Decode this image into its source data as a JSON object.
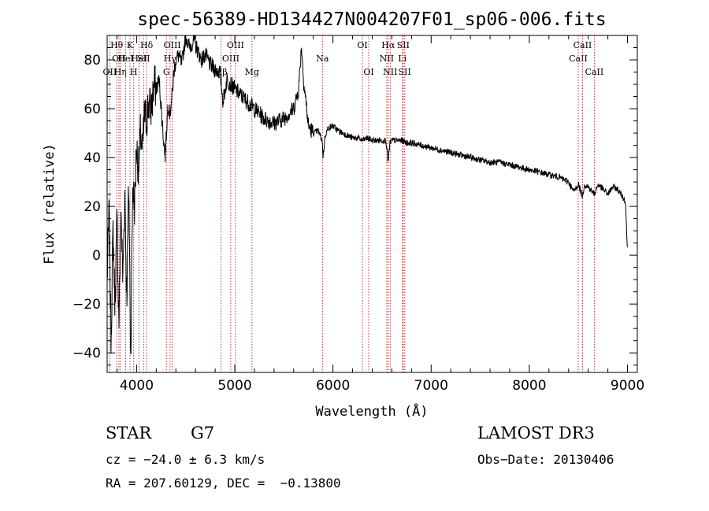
{
  "chart_data": {
    "type": "line",
    "title": "spec-56389-HD134427N004207F01_sp06-006.fits",
    "xlabel": "Wavelength (Å)",
    "ylabel": "Flux (relative)",
    "xlim": [
      3700,
      9100
    ],
    "ylim": [
      -48,
      90
    ],
    "x_ticks": [
      4000,
      5000,
      6000,
      7000,
      8000,
      9000
    ],
    "y_ticks": [
      -40,
      -20,
      0,
      20,
      40,
      60,
      80
    ],
    "grid": false,
    "series": [
      {
        "x": [
          3700,
          3720,
          3740,
          3760,
          3780,
          3800,
          3820,
          3840,
          3860,
          3880,
          3900,
          3920,
          3940,
          3960,
          3980,
          4000,
          4020,
          4040,
          4060,
          4080,
          4100,
          4120,
          4150,
          4180,
          4200,
          4230,
          4260,
          4290,
          4320,
          4340,
          4360,
          4380,
          4400,
          4430,
          4460,
          4500,
          4540,
          4580,
          4620,
          4660,
          4700,
          4750,
          4800,
          4850,
          4880,
          4920,
          4960,
          5000,
          5050,
          5100,
          5150,
          5200,
          5250,
          5300,
          5350,
          5400,
          5450,
          5500,
          5550,
          5600,
          5650,
          5680,
          5700,
          5720,
          5750,
          5800,
          5850,
          5890,
          5900,
          5920,
          5950,
          6000,
          6050,
          6100,
          6150,
          6200,
          6250,
          6300,
          6350,
          6400,
          6450,
          6500,
          6540,
          6563,
          6580,
          6600,
          6650,
          6700,
          6750,
          6800,
          6900,
          7000,
          7100,
          7200,
          7300,
          7400,
          7500,
          7600,
          7700,
          7800,
          7900,
          8000,
          8100,
          8200,
          8300,
          8400,
          8450,
          8500,
          8542,
          8560,
          8600,
          8662,
          8700,
          8750,
          8800,
          8850,
          8900,
          8950,
          8980,
          9000
        ],
        "y": [
          -10,
          18,
          -35,
          10,
          -20,
          15,
          -28,
          20,
          -10,
          25,
          -18,
          30,
          -42,
          28,
          20,
          45,
          35,
          50,
          42,
          58,
          55,
          62,
          60,
          70,
          68,
          72,
          55,
          40,
          62,
          58,
          65,
          75,
          80,
          82,
          78,
          90,
          85,
          88,
          84,
          80,
          82,
          78,
          76,
          75,
          63,
          72,
          70,
          68,
          66,
          64,
          62,
          60,
          58,
          56,
          55,
          54,
          55,
          56,
          58,
          60,
          68,
          86,
          72,
          65,
          53,
          50,
          51,
          47,
          40,
          49,
          52,
          53,
          51,
          50,
          49,
          48,
          48,
          47,
          48,
          47,
          47,
          47,
          47,
          38,
          46,
          47,
          47,
          47,
          46,
          46,
          45,
          44,
          43,
          42,
          41,
          40,
          39,
          38,
          38,
          37,
          36,
          35,
          34,
          33,
          32,
          30,
          26,
          29,
          24,
          29,
          28,
          25,
          29,
          27,
          25,
          28,
          27,
          24,
          22,
          0
        ]
      }
    ],
    "spectral_lines": [
      {
        "wavelength": 3727,
        "labels": [
          "OII"
        ],
        "row": 3
      },
      {
        "wavelength": 3798,
        "labels": [
          "Hθ"
        ],
        "row": 1
      },
      {
        "wavelength": 3820,
        "labels": [
          "OII"
        ],
        "row": 2
      },
      {
        "wavelength": 3835,
        "labels": [
          "Hη"
        ],
        "row": 3
      },
      {
        "wavelength": 3889,
        "labels": [
          "HeI"
        ],
        "row": 2
      },
      {
        "wavelength": 3933,
        "labels": [
          "K"
        ],
        "row": 1
      },
      {
        "wavelength": 3970,
        "labels": [
          "H"
        ],
        "row": 3
      },
      {
        "wavelength": 4026,
        "labels": [
          "HeI"
        ],
        "row": 2
      },
      {
        "wavelength": 4072,
        "labels": [
          "SII"
        ],
        "row": 2
      },
      {
        "wavelength": 4102,
        "labels": [
          "Hδ"
        ],
        "row": 1
      },
      {
        "wavelength": 4304,
        "labels": [
          "G"
        ],
        "row": 3
      },
      {
        "wavelength": 4341,
        "labels": [
          "Hγ"
        ],
        "row": 2
      },
      {
        "wavelength": 4363,
        "labels": [
          "OIII"
        ],
        "row": 1
      },
      {
        "wavelength": 4861,
        "labels": [
          "Hβ"
        ],
        "row": 3
      },
      {
        "wavelength": 4959,
        "labels": [
          "OIII"
        ],
        "row": 2
      },
      {
        "wavelength": 5007,
        "labels": [
          "OIII"
        ],
        "row": 1
      },
      {
        "wavelength": 5175,
        "labels": [
          "Mg"
        ],
        "row": 3
      },
      {
        "wavelength": 5893,
        "labels": [
          "Na"
        ],
        "row": 2
      },
      {
        "wavelength": 6300,
        "labels": [
          "OI"
        ],
        "row": 1
      },
      {
        "wavelength": 6364,
        "labels": [
          "OI"
        ],
        "row": 3
      },
      {
        "wavelength": 6548,
        "labels": [
          "NII"
        ],
        "row": 2
      },
      {
        "wavelength": 6563,
        "labels": [
          "Hα"
        ],
        "row": 1
      },
      {
        "wavelength": 6583,
        "labels": [
          "NII"
        ],
        "row": 3
      },
      {
        "wavelength": 6707,
        "labels": [
          "Li"
        ],
        "row": 2
      },
      {
        "wavelength": 6716,
        "labels": [
          "SII"
        ],
        "row": 1
      },
      {
        "wavelength": 6731,
        "labels": [
          "SII"
        ],
        "row": 3
      },
      {
        "wavelength": 8498,
        "labels": [
          "CaII"
        ],
        "row": 2
      },
      {
        "wavelength": 8542,
        "labels": [
          "CaII"
        ],
        "row": 1
      },
      {
        "wavelength": 8662,
        "labels": [
          "CaII"
        ],
        "row": 3
      }
    ],
    "line_color": "#b22222"
  },
  "info": {
    "class_label": "STAR",
    "subclass": "G7",
    "survey": "LAMOST DR3",
    "cz": "cz = −24.0 ± 6.3 km/s",
    "obs_date": "Obs−Date: 20130406",
    "radec": "RA = 207.60129, DEC =  −0.13800"
  }
}
